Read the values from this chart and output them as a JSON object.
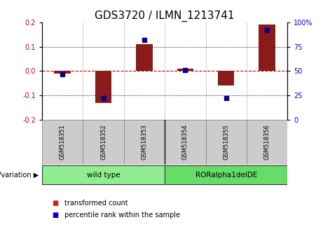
{
  "title": "GDS3720 / ILMN_1213741",
  "samples": [
    "GSM518351",
    "GSM518352",
    "GSM518353",
    "GSM518354",
    "GSM518355",
    "GSM518356"
  ],
  "transformed_count": [
    -0.01,
    -0.13,
    0.11,
    0.01,
    -0.06,
    0.19
  ],
  "percentile_rank": [
    47,
    22,
    82,
    51,
    22,
    92
  ],
  "ylim_left": [
    -0.2,
    0.2
  ],
  "ylim_right": [
    0,
    100
  ],
  "yticks_left": [
    -0.2,
    -0.1,
    0.0,
    0.1,
    0.2
  ],
  "yticks_right": [
    0,
    25,
    50,
    75,
    100
  ],
  "group_label": "genotype/variation",
  "groups": [
    {
      "label": "wild type",
      "xstart": 0,
      "xend": 2,
      "color": "#90EE90"
    },
    {
      "label": "RORalpha1delDE",
      "xstart": 3,
      "xend": 5,
      "color": "#66DD66"
    }
  ],
  "bar_color": "#8B1A1A",
  "dot_color": "#00008B",
  "hline_color": "#CC0000",
  "legend_items": [
    "transformed count",
    "percentile rank within the sample"
  ],
  "legend_colors": [
    "#CC2222",
    "#0000CC"
  ],
  "bg_color": "#FFFFFF",
  "tick_label_fontsize": 7,
  "title_fontsize": 11
}
